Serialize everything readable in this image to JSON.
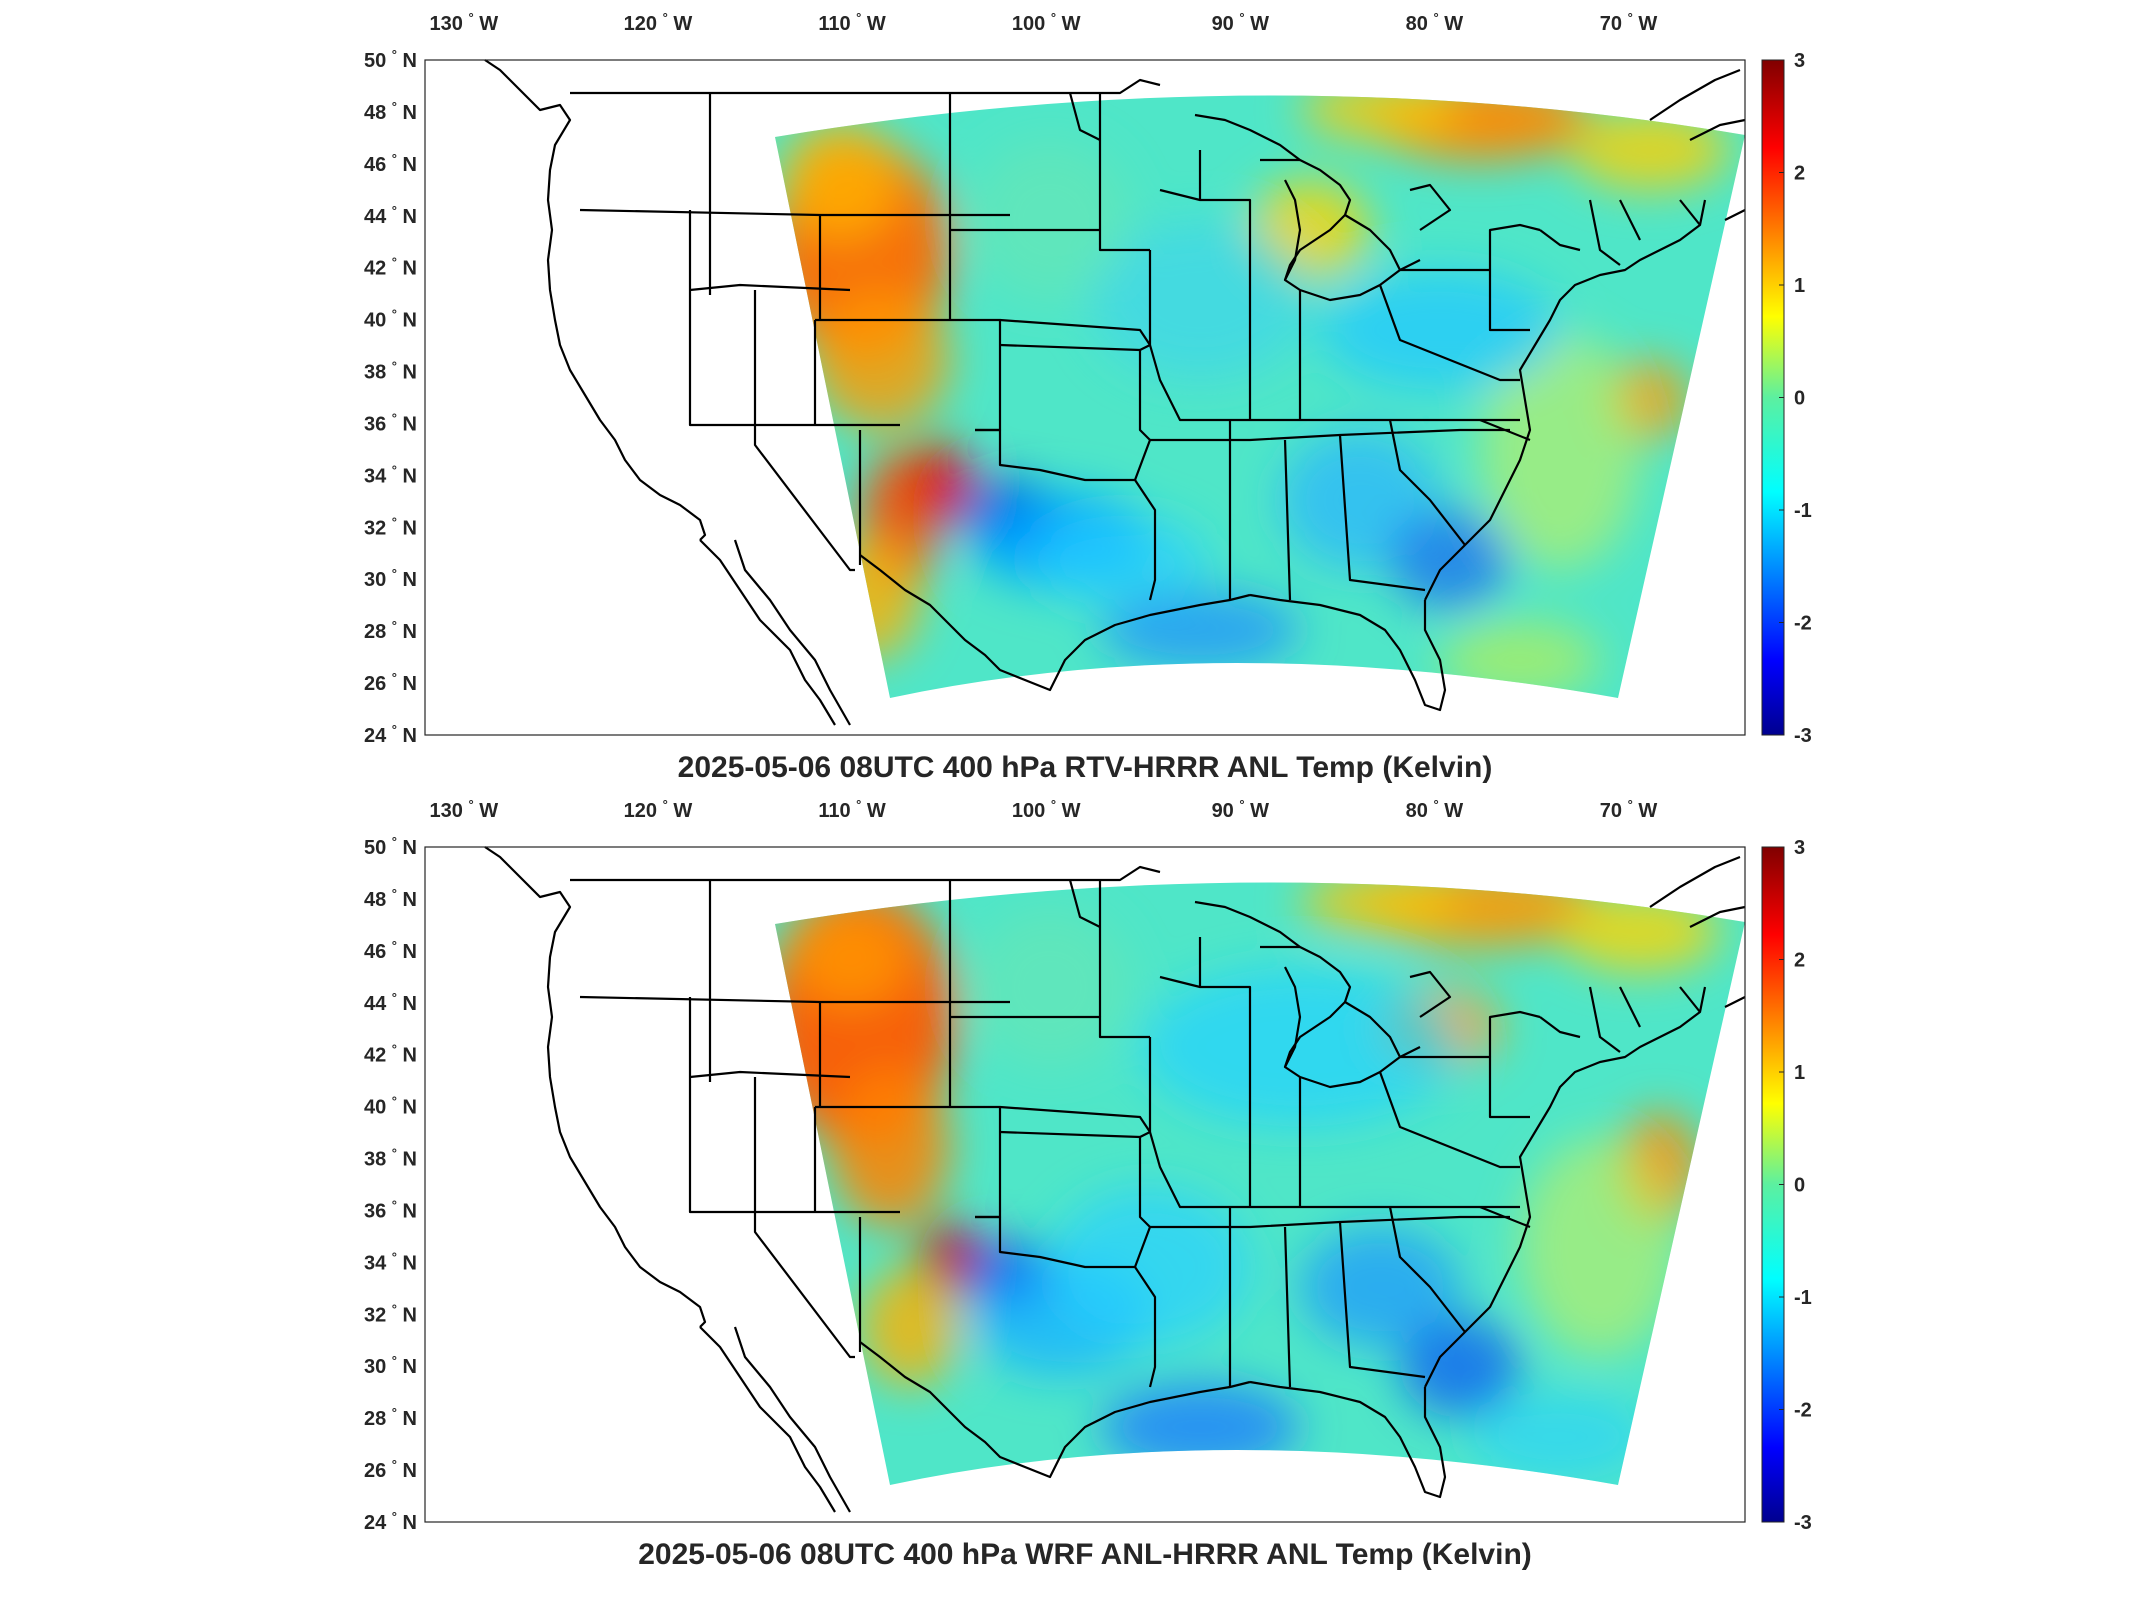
{
  "panels": [
    {
      "title": "2025-05-06 08UTC 400 hPa RTV-HRRR ANL Temp (Kelvin)",
      "field": "rtv_minus_hrrr"
    },
    {
      "title": "2025-05-06 08UTC 400 hPa WRF ANL-HRRR ANL Temp (Kelvin)",
      "field": "wrf_minus_hrrr"
    }
  ],
  "axes": {
    "lon_labels": [
      {
        "value": -130,
        "text": "130",
        "hemi": "W"
      },
      {
        "value": -120,
        "text": "120",
        "hemi": "W"
      },
      {
        "value": -110,
        "text": "110",
        "hemi": "W"
      },
      {
        "value": -100,
        "text": "100",
        "hemi": "W"
      },
      {
        "value": -90,
        "text": "90",
        "hemi": "W"
      },
      {
        "value": -80,
        "text": "80",
        "hemi": "W"
      },
      {
        "value": -70,
        "text": "70",
        "hemi": "W"
      }
    ],
    "lat_labels": [
      {
        "value": 50,
        "text": "50",
        "hemi": "N"
      },
      {
        "value": 48,
        "text": "48",
        "hemi": "N"
      },
      {
        "value": 46,
        "text": "46",
        "hemi": "N"
      },
      {
        "value": 44,
        "text": "44",
        "hemi": "N"
      },
      {
        "value": 42,
        "text": "42",
        "hemi": "N"
      },
      {
        "value": 40,
        "text": "40",
        "hemi": "N"
      },
      {
        "value": 38,
        "text": "38",
        "hemi": "N"
      },
      {
        "value": 36,
        "text": "36",
        "hemi": "N"
      },
      {
        "value": 34,
        "text": "34",
        "hemi": "N"
      },
      {
        "value": 32,
        "text": "32",
        "hemi": "N"
      },
      {
        "value": 30,
        "text": "30",
        "hemi": "N"
      },
      {
        "value": 28,
        "text": "28",
        "hemi": "N"
      },
      {
        "value": 26,
        "text": "26",
        "hemi": "N"
      },
      {
        "value": 24,
        "text": "24",
        "hemi": "N"
      }
    ],
    "degree_symbol": "°"
  },
  "colorbar": {
    "range": [
      -3,
      3
    ],
    "ticks": [
      {
        "value": 3,
        "text": "3"
      },
      {
        "value": 2,
        "text": "2"
      },
      {
        "value": 1,
        "text": "1"
      },
      {
        "value": 0,
        "text": "0"
      },
      {
        "value": -1,
        "text": "-1"
      },
      {
        "value": -2,
        "text": "-2"
      },
      {
        "value": -3,
        "text": "-3"
      }
    ],
    "colormap": "jet",
    "colormap_stops": [
      "#00008f",
      "#0000ff",
      "#00ffff",
      "#ffff00",
      "#ff0000",
      "#800000"
    ]
  },
  "colors": {
    "background": "#ffffff",
    "coastline": "#000000",
    "field_base": "#4fe6c8"
  }
}
